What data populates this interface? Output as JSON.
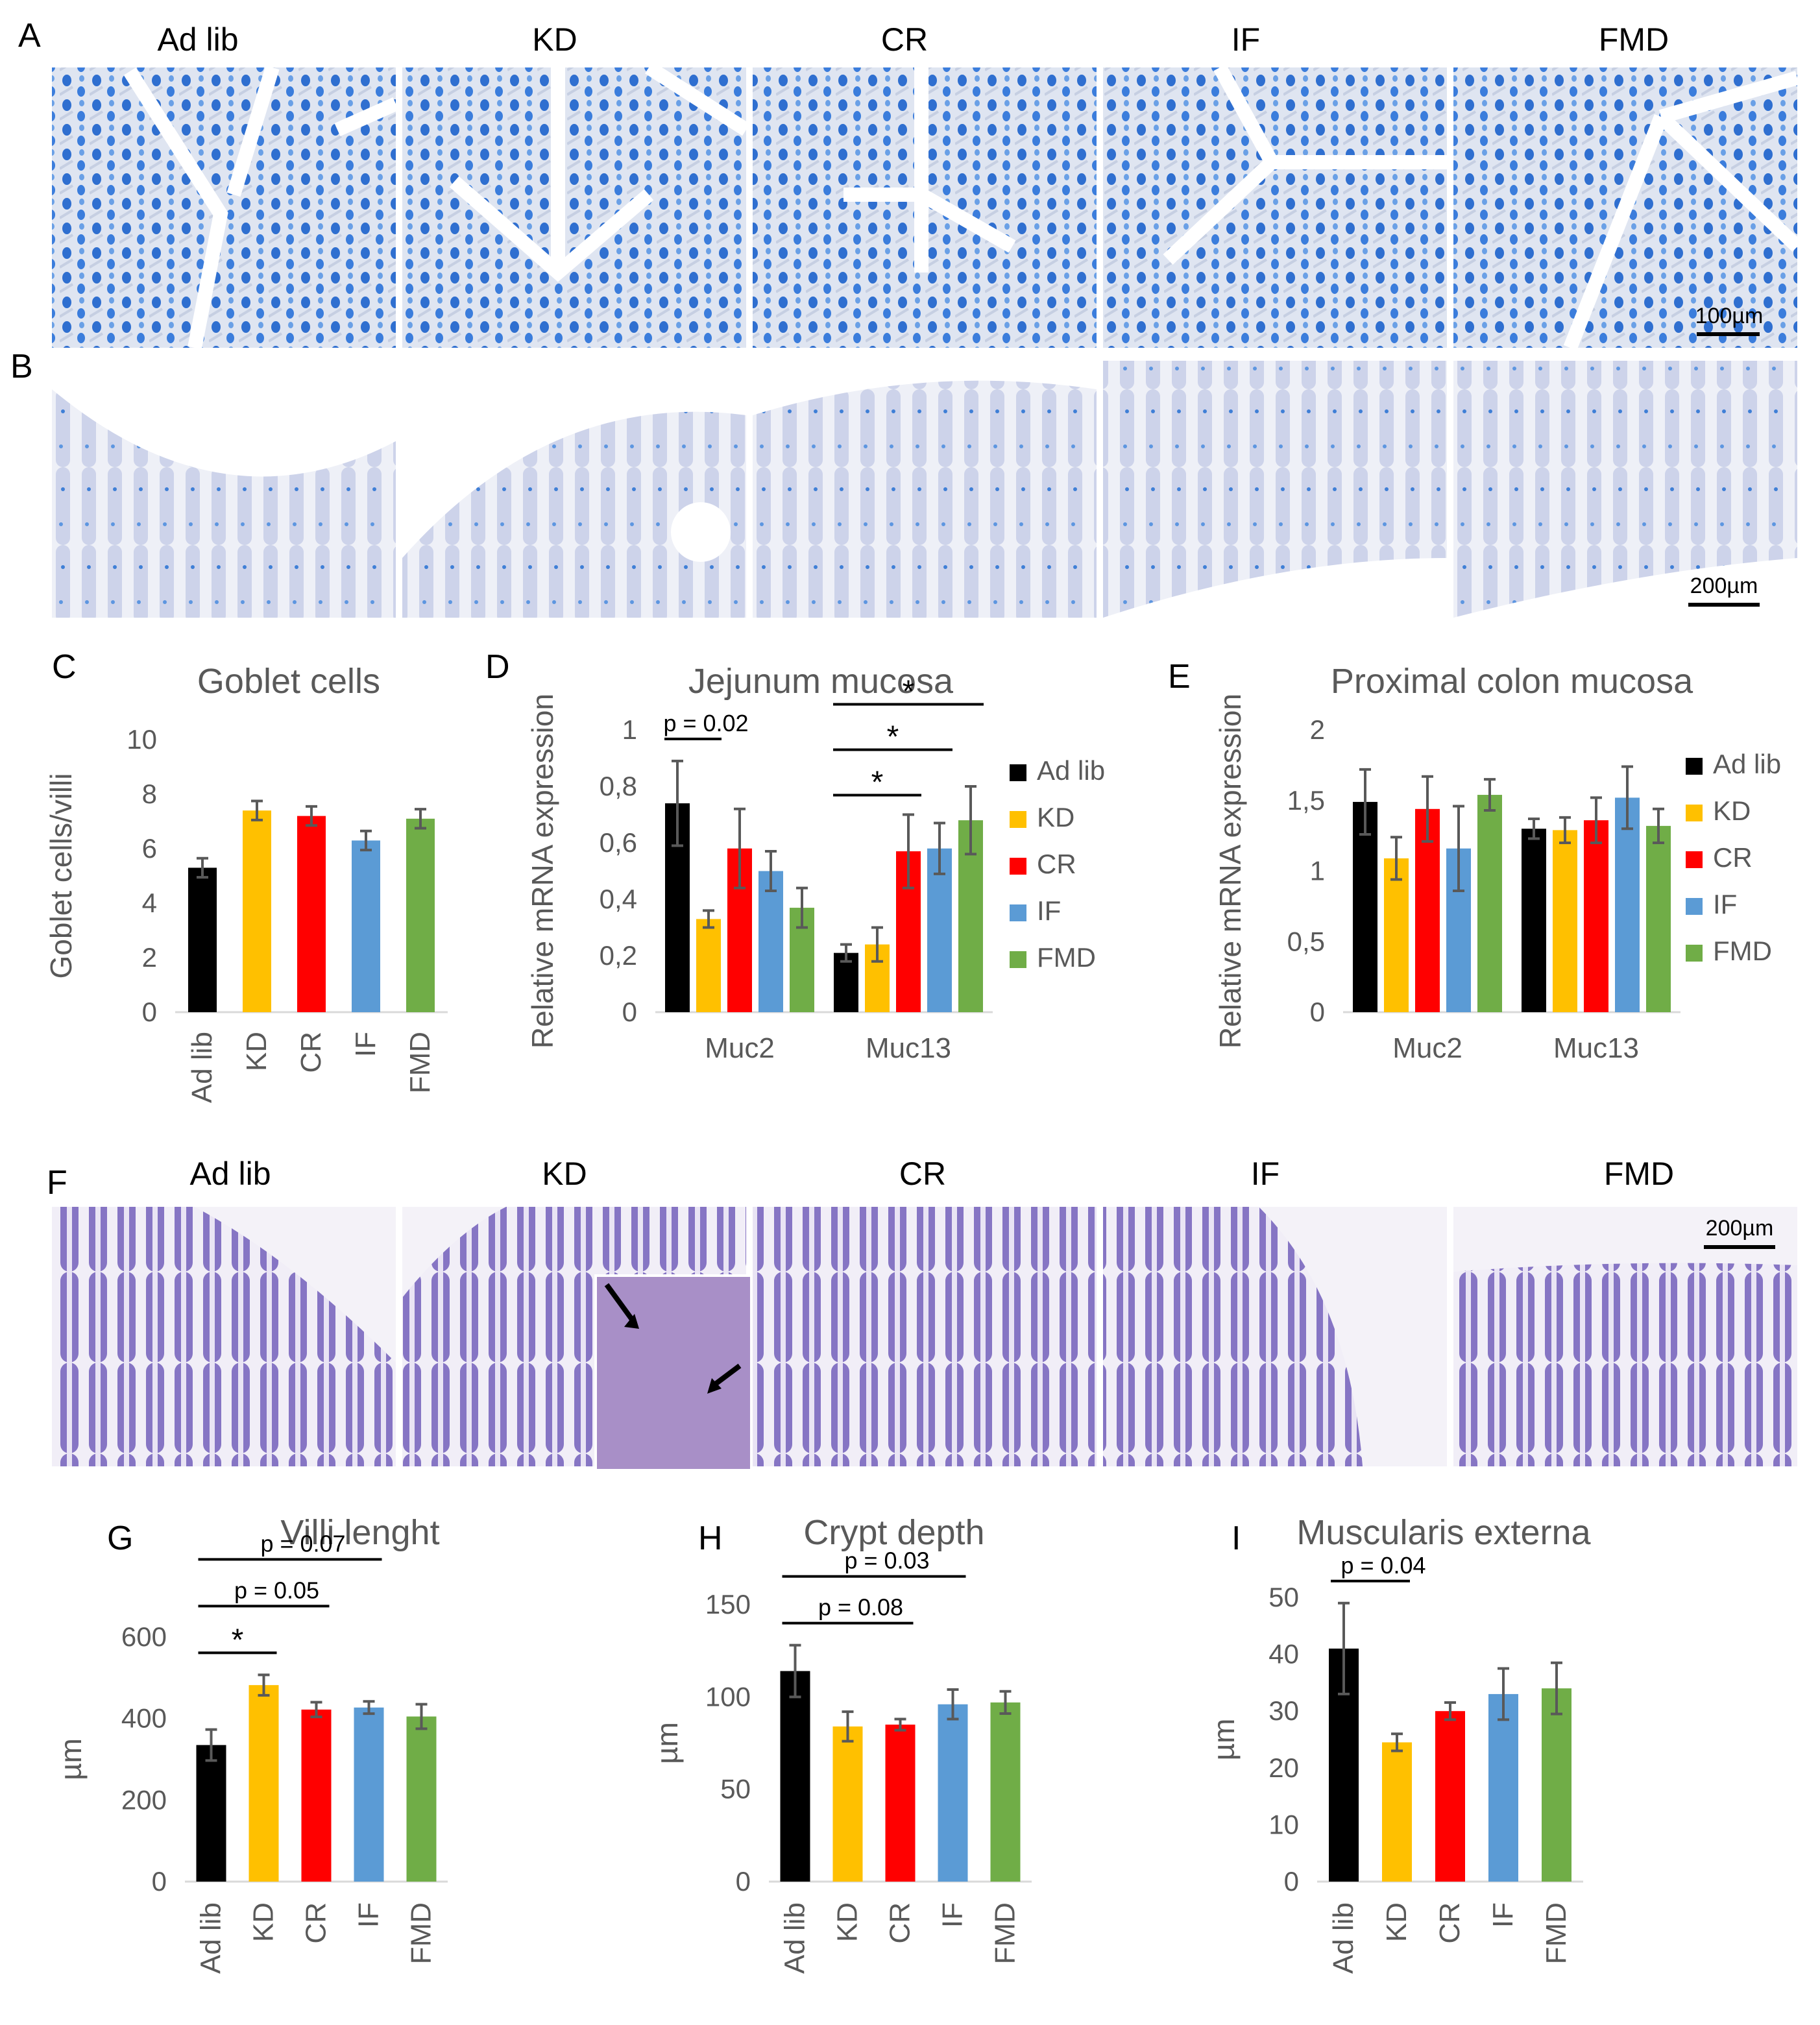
{
  "panels": {
    "A": "A",
    "B": "B",
    "C": "C",
    "D": "D",
    "E": "E",
    "F": "F",
    "G": "G",
    "H": "H",
    "I": "I"
  },
  "groups": [
    "Ad lib",
    "KD",
    "CR",
    "IF",
    "FMD"
  ],
  "scalebars": {
    "A": "100µm",
    "B": "200µm",
    "F": "200µm"
  },
  "colors": {
    "Ad lib": "#000000",
    "KD": "#FFC000",
    "CR": "#FF0000",
    "IF": "#5B9BD5",
    "FMD": "#70AD47",
    "stain_ab_dark": "#2f6fd0",
    "stain_ab_light": "#e4eaf4",
    "stain_ab_faint": "#d9dceb",
    "stain_he_dark": "#6a55b5",
    "stain_he_light": "#efeaf6"
  },
  "chart_data": [
    {
      "id": "C",
      "type": "bar",
      "title": "Goblet cells",
      "ylabel": "Goblet cells/villi",
      "categories": [
        "Ad lib",
        "KD",
        "CR",
        "IF",
        "FMD"
      ],
      "values": [
        5.3,
        7.4,
        7.2,
        6.3,
        7.1
      ],
      "errors": [
        0.35,
        0.35,
        0.35,
        0.35,
        0.35
      ],
      "ylim": [
        0,
        10
      ],
      "yticks": [
        "0",
        "2",
        "4",
        "6",
        "8",
        "10"
      ]
    },
    {
      "id": "D",
      "type": "bar",
      "title": "Jejunum mucosa",
      "ylabel": "Relative mRNA expression",
      "categories": [
        "Muc2",
        "Muc13"
      ],
      "series": [
        {
          "name": "Ad lib",
          "values": [
            0.74,
            0.21
          ],
          "errors": [
            0.15,
            0.03
          ]
        },
        {
          "name": "KD",
          "values": [
            0.33,
            0.24
          ],
          "errors": [
            0.03,
            0.06
          ]
        },
        {
          "name": "CR",
          "values": [
            0.58,
            0.57
          ],
          "errors": [
            0.14,
            0.13
          ]
        },
        {
          "name": "IF",
          "values": [
            0.5,
            0.58
          ],
          "errors": [
            0.07,
            0.09
          ]
        },
        {
          "name": "FMD",
          "values": [
            0.37,
            0.68
          ],
          "errors": [
            0.07,
            0.12
          ]
        }
      ],
      "ylim": [
        0,
        1
      ],
      "yticks": [
        "0",
        "0,2",
        "0,4",
        "0,6",
        "0,8",
        "1"
      ],
      "annotations": [
        {
          "label": "p = 0.02",
          "group": 0,
          "from": 0,
          "to": 1
        },
        {
          "label": "*",
          "group": 1,
          "from": 0,
          "to": 2
        },
        {
          "label": "*",
          "group": 1,
          "from": 0,
          "to": 3
        },
        {
          "label": "*",
          "group": 1,
          "from": 0,
          "to": 4
        }
      ]
    },
    {
      "id": "E",
      "type": "bar",
      "title": "Proximal colon mucosa",
      "ylabel": "Relative mRNA expression",
      "categories": [
        "Muc2",
        "Muc13"
      ],
      "series": [
        {
          "name": "Ad lib",
          "values": [
            1.49,
            1.3
          ],
          "errors": [
            0.23,
            0.07
          ]
        },
        {
          "name": "KD",
          "values": [
            1.09,
            1.29
          ],
          "errors": [
            0.15,
            0.09
          ]
        },
        {
          "name": "CR",
          "values": [
            1.44,
            1.36
          ],
          "errors": [
            0.23,
            0.16
          ]
        },
        {
          "name": "IF",
          "values": [
            1.16,
            1.52
          ],
          "errors": [
            0.3,
            0.22
          ]
        },
        {
          "name": "FMD",
          "values": [
            1.54,
            1.32
          ],
          "errors": [
            0.11,
            0.12
          ]
        }
      ],
      "ylim": [
        0,
        2
      ],
      "yticks": [
        "0",
        "0,5",
        "1",
        "1,5",
        "2"
      ]
    },
    {
      "id": "G",
      "type": "bar",
      "title": "Villi lenght",
      "ylabel": "µm",
      "categories": [
        "Ad lib",
        "KD",
        "CR",
        "IF",
        "FMD"
      ],
      "values": [
        335,
        482,
        422,
        427,
        405
      ],
      "errors": [
        38,
        25,
        18,
        15,
        30
      ],
      "ylim": [
        0,
        600
      ],
      "yticks": [
        "0",
        "200",
        "400",
        "600"
      ],
      "annotations": [
        {
          "label": "*",
          "from": 0,
          "to": 1
        },
        {
          "label": "p = 0.05",
          "from": 0,
          "to": 2
        },
        {
          "label": "p = 0.07",
          "from": 0,
          "to": 3
        }
      ]
    },
    {
      "id": "H",
      "type": "bar",
      "title": "Crypt depth",
      "ylabel": "µm",
      "categories": [
        "Ad lib",
        "KD",
        "CR",
        "IF",
        "FMD"
      ],
      "values": [
        114,
        84,
        85,
        96,
        97
      ],
      "errors": [
        14,
        8,
        3,
        8,
        6
      ],
      "ylim": [
        0,
        150
      ],
      "yticks": [
        "0",
        "50",
        "100",
        "150"
      ],
      "annotations": [
        {
          "label": "p = 0.08",
          "from": 0,
          "to": 2
        },
        {
          "label": "p = 0.03",
          "from": 0,
          "to": 3
        }
      ]
    },
    {
      "id": "I",
      "type": "bar",
      "title": "Muscularis externa",
      "ylabel": "µm",
      "categories": [
        "Ad lib",
        "KD",
        "CR",
        "IF",
        "FMD"
      ],
      "values": [
        41,
        24.5,
        30,
        33,
        34
      ],
      "errors": [
        8,
        1.5,
        1.5,
        4.5,
        4.5
      ],
      "ylim": [
        0,
        50
      ],
      "yticks": [
        "0",
        "10",
        "20",
        "30",
        "40",
        "50"
      ],
      "annotations": [
        {
          "label": "p = 0.04",
          "from": 0,
          "to": 1
        }
      ]
    }
  ]
}
